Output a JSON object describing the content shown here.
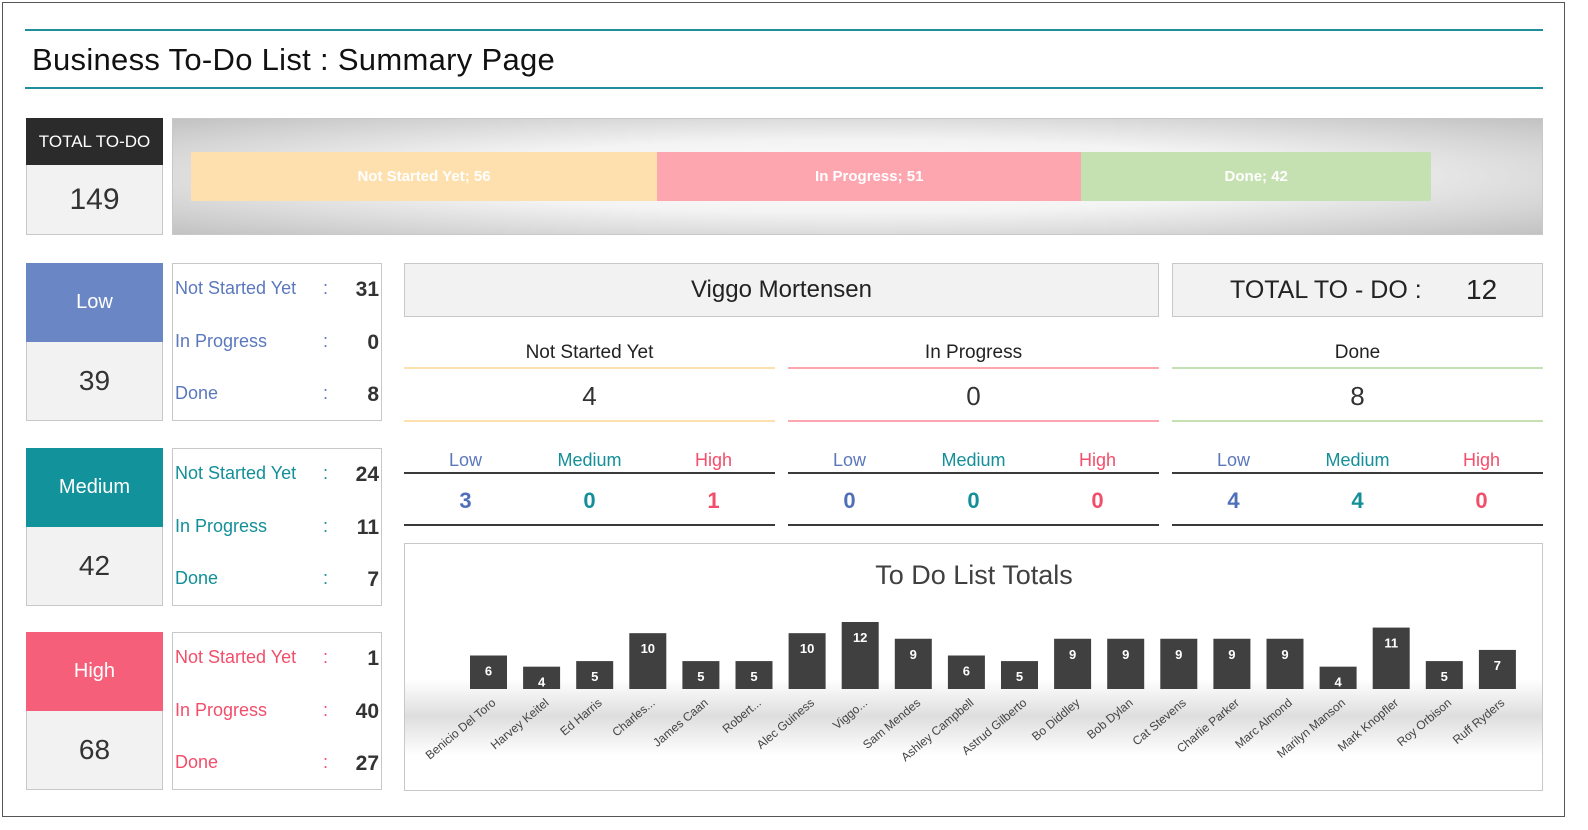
{
  "page_title": "Business To-Do List : Summary Page",
  "total": {
    "label": "TOTAL TO-DO",
    "value": "149"
  },
  "status_bar": {
    "segments": [
      {
        "label": "Not Started Yet; 56",
        "value": 56,
        "color": "#fde0ad"
      },
      {
        "label": "In Progress; 51",
        "value": 51,
        "color": "#fea6b0"
      },
      {
        "label": "Done; 42",
        "value": 42,
        "color": "#c6e1b1"
      }
    ]
  },
  "priorities": [
    {
      "name": "Low",
      "total": "39",
      "color": "#6b86c4",
      "text_color": "#5b78bd",
      "rows": [
        {
          "label": "Not Started Yet",
          "value": "31"
        },
        {
          "label": "In Progress",
          "value": "0"
        },
        {
          "label": "Done",
          "value": "8"
        }
      ]
    },
    {
      "name": "Medium",
      "total": "42",
      "color": "#12929b",
      "text_color": "#128f99",
      "rows": [
        {
          "label": "Not Started Yet",
          "value": "24"
        },
        {
          "label": "In Progress",
          "value": "11"
        },
        {
          "label": "Done",
          "value": "7"
        }
      ]
    },
    {
      "name": "High",
      "total": "68",
      "color": "#f65f79",
      "text_color": "#f24e6a",
      "rows": [
        {
          "label": "Not Started Yet",
          "value": "1"
        },
        {
          "label": "In Progress",
          "value": "40"
        },
        {
          "label": "Done",
          "value": "27"
        }
      ]
    }
  ],
  "row_separator": ":",
  "person": {
    "name": "Viggo Mortensen",
    "total_label": "TOTAL TO - DO :",
    "total_value": "12",
    "statuses": [
      {
        "label": "Not Started Yet",
        "value": "4",
        "line_color": "#fde0ad",
        "low": "3",
        "medium": "0",
        "high": "1"
      },
      {
        "label": "In Progress",
        "value": "0",
        "line_color": "#fea6b0",
        "low": "0",
        "medium": "0",
        "high": "0"
      },
      {
        "label": "Done",
        "value": "8",
        "line_color": "#c6e1b1",
        "low": "4",
        "medium": "4",
        "high": "0"
      }
    ],
    "sub_labels": {
      "low": "Low",
      "medium": "Medium",
      "high": "High"
    }
  },
  "chart_data": {
    "type": "bar",
    "title": "To Do List Totals",
    "categories": [
      "Benicio Del Toro",
      "Harvey Keitel",
      "Ed Harris",
      "Charles...",
      "James Caan",
      "Robert...",
      "Alec Guiness",
      "Viggo...",
      "Sam Mendes",
      "Ashley Campbell",
      "Astrud Gilberto",
      "Bo Diddley",
      "Bob Dylan",
      "Cat Stevens",
      "Charlie Parker",
      "Marc Almond",
      "Marilyn Manson",
      "Mark Knopfler",
      "Roy Orbison",
      "Ruff Ryders"
    ],
    "values": [
      6,
      4,
      5,
      10,
      5,
      5,
      10,
      12,
      9,
      6,
      5,
      9,
      9,
      9,
      9,
      9,
      4,
      11,
      5,
      7
    ],
    "bar_color": "#404040",
    "data_labels": true,
    "grid": false,
    "ylim": [
      0,
      12
    ]
  }
}
